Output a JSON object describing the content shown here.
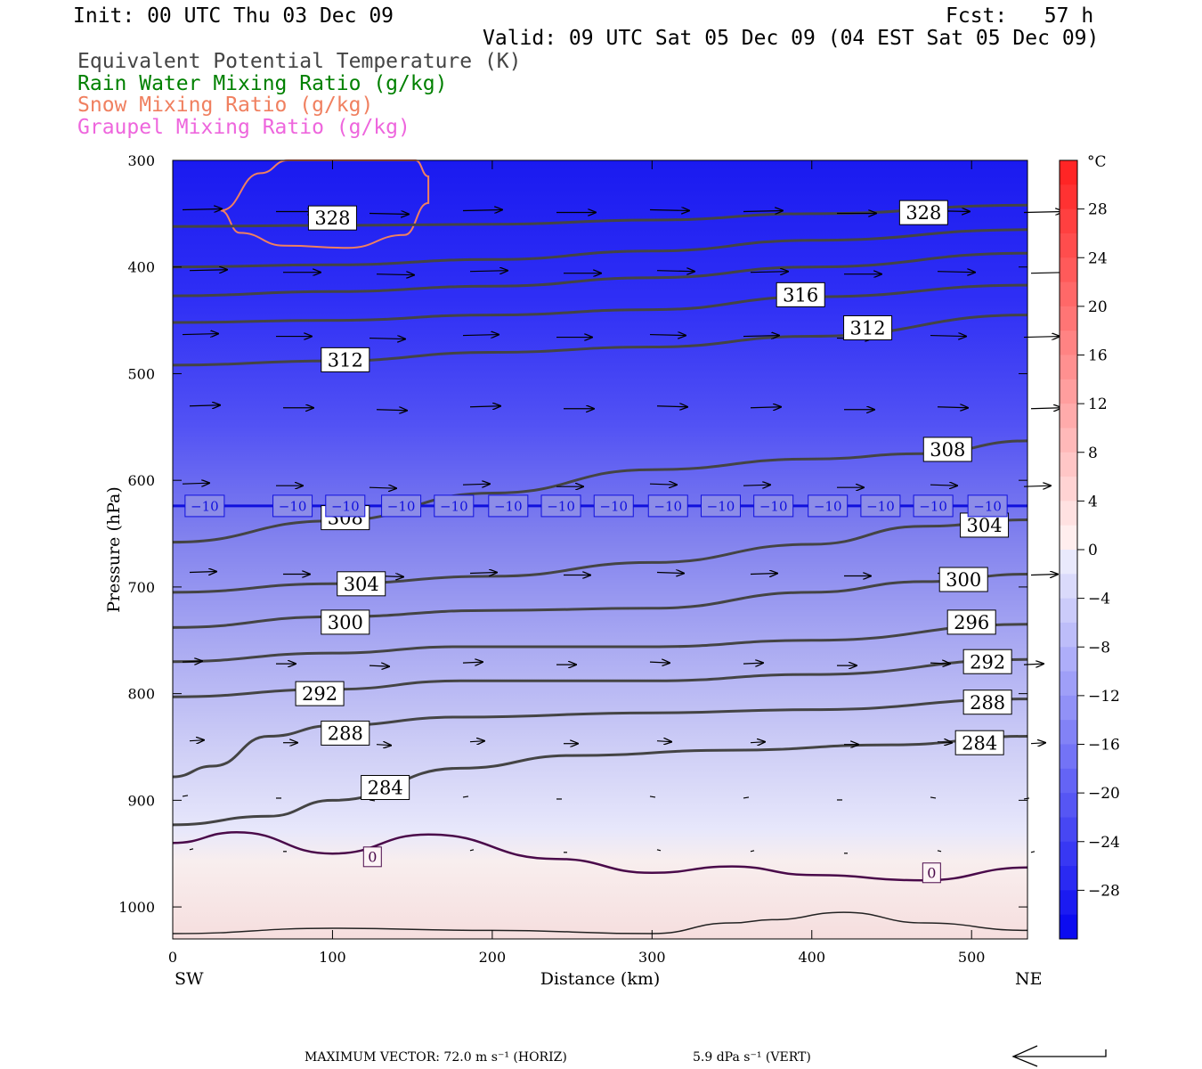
{
  "header": {
    "init": "Init: 00 UTC Thu 03 Dec 09",
    "fcst": "Fcst:   57 h",
    "valid": "Valid: 09 UTC Sat 05 Dec 09 (04 EST Sat 05 Dec 09)"
  },
  "legend": [
    {
      "label": "Equivalent Potential Temperature (K)",
      "color": "#444444"
    },
    {
      "label": "Rain Water Mixing Ratio (g/kg)",
      "color": "#008000"
    },
    {
      "label": "Snow Mixing Ratio (g/kg)",
      "color": "#f08060"
    },
    {
      "label": "Graupel Mixing Ratio (g/kg)",
      "color": "#ee66dd"
    }
  ],
  "footer": {
    "max_vector": "MAXIMUM VECTOR:  72.0 m s⁻¹ (HORIZ)",
    "vert": "5.9 dPa s⁻¹ (VERT)"
  },
  "chart_data": {
    "type": "cross-section",
    "xlabel": "Distance (km)",
    "ylabel": "Pressure (hPa)",
    "x_ticks": [
      "0",
      "100",
      "200",
      "300",
      "400",
      "500"
    ],
    "x_end_labels": {
      "left": "SW",
      "right": "NE"
    },
    "xlim": [
      0,
      535
    ],
    "y_ticks": [
      "300",
      "400",
      "500",
      "600",
      "700",
      "800",
      "900",
      "1000"
    ],
    "ylim": [
      1030,
      300
    ],
    "colorbar": {
      "unit": "°C",
      "labels": [
        "28",
        "24",
        "20",
        "16",
        "12",
        "8",
        "4",
        "0",
        "−4",
        "−8",
        "−12",
        "−16",
        "−20",
        "−24",
        "−28"
      ],
      "range": [
        -32,
        32
      ]
    },
    "theta_e_contours": [
      {
        "level": 328,
        "points": [
          [
            0,
            362
          ],
          [
            100,
            361
          ],
          [
            200,
            360
          ],
          [
            300,
            356
          ],
          [
            400,
            350
          ],
          [
            535,
            342
          ]
        ],
        "labels": [
          [
            100,
            354
          ],
          [
            470,
            349
          ]
        ]
      },
      {
        "level": 324,
        "points": [
          [
            0,
            400
          ],
          [
            100,
            398
          ],
          [
            200,
            393
          ],
          [
            300,
            385
          ],
          [
            400,
            375
          ],
          [
            535,
            365
          ]
        ],
        "labels": []
      },
      {
        "level": 320,
        "points": [
          [
            0,
            427
          ],
          [
            100,
            423
          ],
          [
            200,
            418
          ],
          [
            300,
            410
          ],
          [
            400,
            400
          ],
          [
            535,
            387
          ]
        ],
        "labels": []
      },
      {
        "level": 316,
        "points": [
          [
            0,
            452
          ],
          [
            100,
            450
          ],
          [
            200,
            445
          ],
          [
            300,
            440
          ],
          [
            400,
            428
          ],
          [
            535,
            417
          ]
        ],
        "labels": [
          [
            393,
            426
          ]
        ]
      },
      {
        "level": 312,
        "points": [
          [
            0,
            492
          ],
          [
            100,
            488
          ],
          [
            200,
            480
          ],
          [
            300,
            475
          ],
          [
            400,
            465
          ],
          [
            535,
            445
          ]
        ],
        "labels": [
          [
            108,
            487
          ],
          [
            435,
            457
          ]
        ]
      },
      {
        "level": 308,
        "points": [
          [
            0,
            658
          ],
          [
            100,
            638
          ],
          [
            200,
            612
          ],
          [
            300,
            590
          ],
          [
            400,
            580
          ],
          [
            470,
            575
          ],
          [
            535,
            563
          ]
        ],
        "labels": [
          [
            108,
            635
          ],
          [
            485,
            571
          ]
        ]
      },
      {
        "level": 304,
        "points": [
          [
            0,
            705
          ],
          [
            100,
            697
          ],
          [
            200,
            690
          ],
          [
            300,
            677
          ],
          [
            400,
            660
          ],
          [
            470,
            643
          ],
          [
            535,
            637
          ]
        ],
        "labels": [
          [
            118,
            697
          ],
          [
            508,
            642
          ]
        ]
      },
      {
        "level": 300,
        "points": [
          [
            0,
            738
          ],
          [
            100,
            728
          ],
          [
            200,
            722
          ],
          [
            300,
            720
          ],
          [
            400,
            705
          ],
          [
            470,
            695
          ],
          [
            535,
            688
          ]
        ],
        "labels": [
          [
            108,
            733
          ],
          [
            495,
            693
          ]
        ]
      },
      {
        "level": 296,
        "points": [
          [
            0,
            770
          ],
          [
            100,
            762
          ],
          [
            180,
            756
          ],
          [
            300,
            756
          ],
          [
            400,
            750
          ],
          [
            535,
            735
          ]
        ],
        "labels": [
          [
            500,
            733
          ]
        ]
      },
      {
        "level": 292,
        "points": [
          [
            0,
            803
          ],
          [
            100,
            796
          ],
          [
            180,
            788
          ],
          [
            300,
            788
          ],
          [
            400,
            782
          ],
          [
            535,
            768
          ]
        ],
        "labels": [
          [
            92,
            800
          ],
          [
            510,
            770
          ]
        ]
      },
      {
        "level": 288,
        "points": [
          [
            0,
            878
          ],
          [
            25,
            868
          ],
          [
            60,
            840
          ],
          [
            100,
            830
          ],
          [
            180,
            822
          ],
          [
            300,
            818
          ],
          [
            400,
            815
          ],
          [
            535,
            805
          ]
        ],
        "labels": [
          [
            108,
            837
          ],
          [
            510,
            808
          ]
        ]
      },
      {
        "level": 284,
        "points": [
          [
            0,
            923
          ],
          [
            60,
            915
          ],
          [
            100,
            900
          ],
          [
            180,
            870
          ],
          [
            250,
            858
          ],
          [
            350,
            853
          ],
          [
            450,
            848
          ],
          [
            535,
            840
          ]
        ],
        "labels": [
          [
            133,
            888
          ],
          [
            505,
            846
          ]
        ]
      }
    ],
    "isotherm_0": {
      "level": 0,
      "points": [
        [
          0,
          940
        ],
        [
          40,
          930
        ],
        [
          100,
          950
        ],
        [
          160,
          932
        ],
        [
          240,
          955
        ],
        [
          300,
          968
        ],
        [
          350,
          962
        ],
        [
          400,
          970
        ],
        [
          470,
          975
        ],
        [
          535,
          963
        ]
      ],
      "labels": [
        [
          125,
          953
        ],
        [
          475,
          968
        ]
      ]
    },
    "isotherm_m10": {
      "level": -10,
      "points": [
        [
          0,
          624
        ],
        [
          535,
          624
        ]
      ],
      "label_x": [
        20,
        75,
        108,
        143,
        176,
        210,
        243,
        276,
        310,
        343,
        376,
        410,
        443,
        476,
        510
      ]
    },
    "snow_contour": {
      "points": [
        [
          30,
          347
        ],
        [
          55,
          312
        ],
        [
          72,
          300
        ],
        [
          152,
          300
        ],
        [
          160,
          315
        ],
        [
          160,
          340
        ],
        [
          145,
          370
        ],
        [
          110,
          382
        ],
        [
          70,
          380
        ],
        [
          42,
          368
        ],
        [
          30,
          347
        ]
      ]
    },
    "surface_line": {
      "points": [
        [
          0,
          1025
        ],
        [
          100,
          1020
        ],
        [
          200,
          1022
        ],
        [
          300,
          1025
        ],
        [
          350,
          1015
        ],
        [
          375,
          1012
        ],
        [
          420,
          1005
        ],
        [
          470,
          1015
        ],
        [
          535,
          1022
        ]
      ]
    }
  }
}
